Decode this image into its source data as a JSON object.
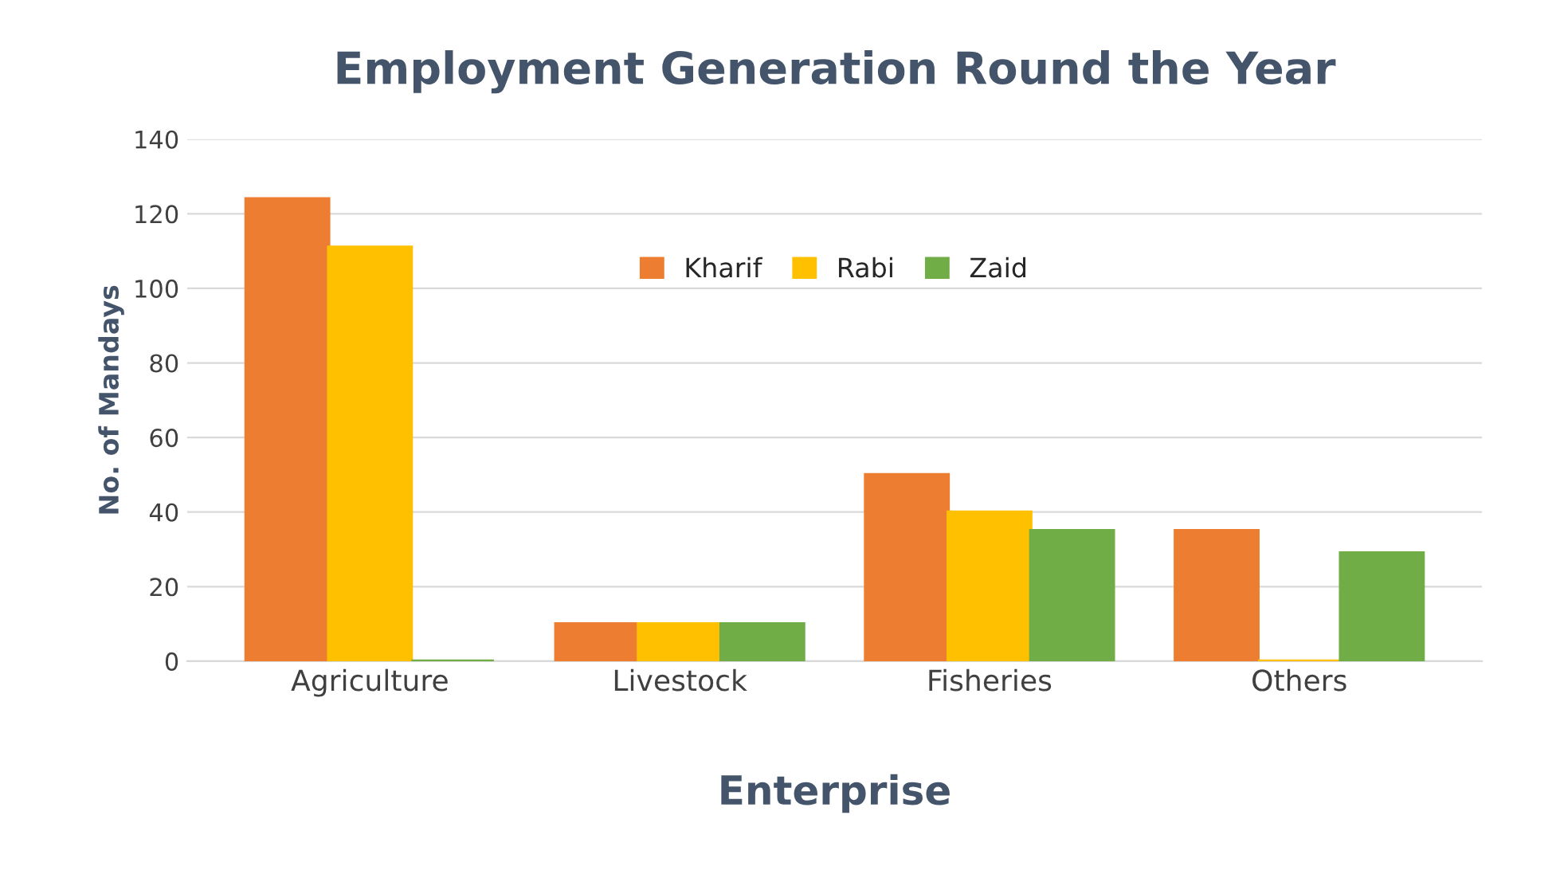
{
  "chart_data": {
    "type": "bar",
    "title": "Employment Generation Round the Year",
    "xlabel": "Enterprise",
    "ylabel": "No. of Mandays",
    "categories": [
      "Agriculture",
      "Livestock",
      "Fisheries",
      "Others"
    ],
    "series": [
      {
        "name": "Kharif",
        "color": "#ed7d31",
        "values": [
          124,
          10,
          50,
          35
        ]
      },
      {
        "name": "Rabi",
        "color": "#ffc000",
        "values": [
          111,
          10,
          40,
          0
        ]
      },
      {
        "name": "Zaid",
        "color": "#70ad47",
        "values": [
          0,
          10,
          35,
          29
        ]
      }
    ],
    "ylim": [
      0,
      140
    ],
    "yticks": [
      0,
      20,
      40,
      60,
      80,
      100,
      120,
      140
    ],
    "grid": "y",
    "legend": "top"
  }
}
